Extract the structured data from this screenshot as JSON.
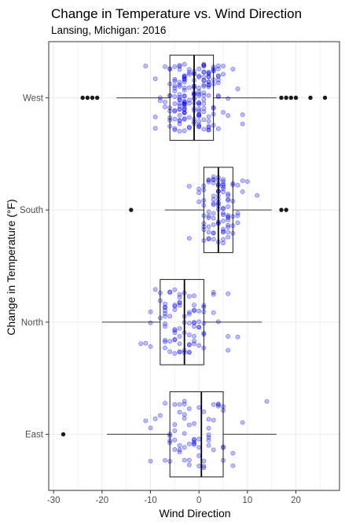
{
  "chart_data": {
    "type": "boxplot",
    "title": "Change in Temperature vs. Wind Direction",
    "subtitle": "Lansing, Michigan: 2016",
    "xlabel": "Wind Direction",
    "ylabel": "Change in Temperature (°F)",
    "xlim": [
      -31,
      29
    ],
    "x_ticks": [
      -30,
      -20,
      -10,
      0,
      10,
      20
    ],
    "x_tick_labels": [
      "-30",
      "-20",
      "-10",
      "0",
      "10",
      "20"
    ],
    "categories": [
      "West",
      "South",
      "North",
      "East"
    ],
    "colors": {
      "jitter": "#0000ff",
      "box": "#000000",
      "outlier": "#1a1a1a",
      "grid": "#ebebeb",
      "panel_border": "#333333"
    },
    "boxes": [
      {
        "category": "West",
        "q1": -6,
        "median": -1,
        "q3": 3,
        "whisker_low": -17,
        "whisker_high": 16,
        "outliers": [
          -24,
          -23,
          -22,
          -21,
          17,
          18,
          19,
          20,
          23,
          26
        ]
      },
      {
        "category": "South",
        "q1": 1,
        "median": 4,
        "q3": 7,
        "whisker_low": -7,
        "whisker_high": 15,
        "outliers": [
          -14,
          17,
          18
        ]
      },
      {
        "category": "North",
        "q1": -8,
        "median": -3,
        "q3": 1,
        "whisker_low": -20,
        "whisker_high": 13,
        "outliers": []
      },
      {
        "category": "East",
        "q1": -6,
        "median": 0.5,
        "q3": 5,
        "whisker_low": -19,
        "whisker_high": 16,
        "outliers": [
          -28
        ]
      }
    ],
    "jitter_counts": {
      "West": 190,
      "South": 100,
      "North": 90,
      "East": 70
    }
  }
}
